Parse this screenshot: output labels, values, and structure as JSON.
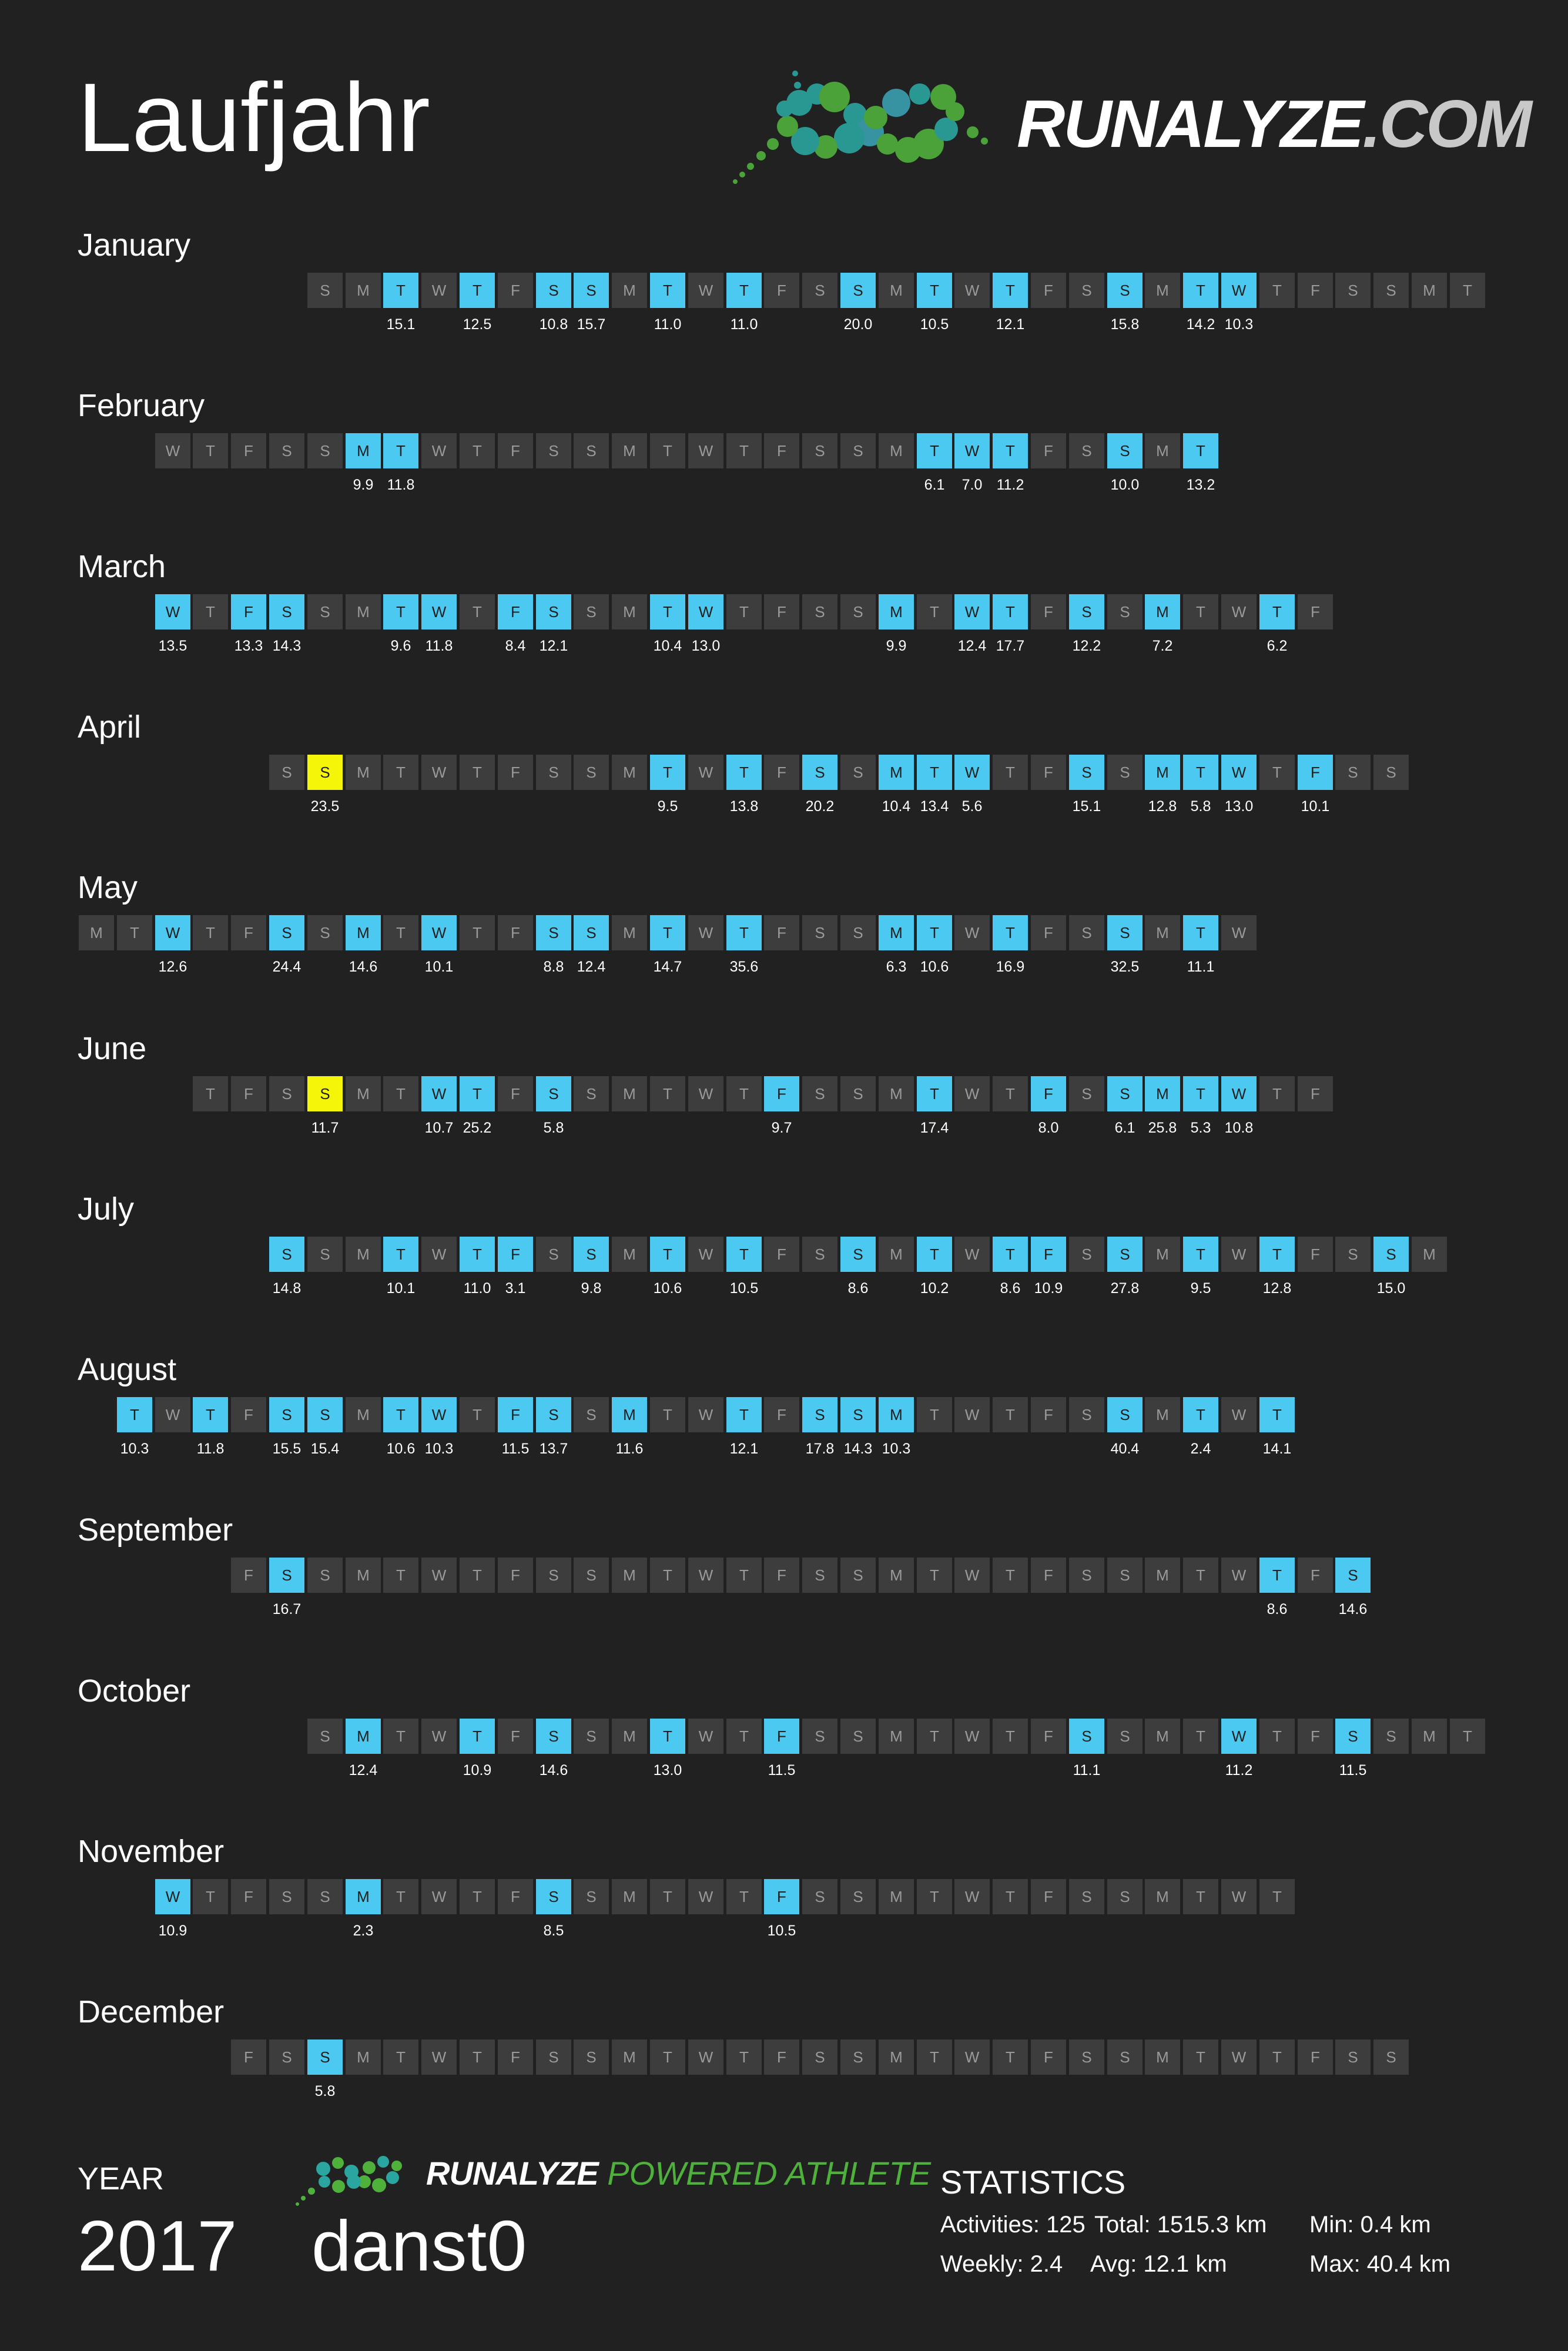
{
  "title": "Laufjahr",
  "logo": {
    "name": "RUNALYZE",
    "suffix": ".COM"
  },
  "months": [
    {
      "name": "January",
      "start": 6,
      "days": "SMTWTFSSMTWTFSSMTWTFSSMTWTFSSMT",
      "runs": {
        "2": "15.1",
        "4": "12.5",
        "6": "10.8",
        "7": "15.7",
        "9": "11.0",
        "11": "11.0",
        "14": "20.0",
        "16": "10.5",
        "18": "12.1",
        "21": "15.8",
        "23": "14.2",
        "24": "10.3"
      }
    },
    {
      "name": "February",
      "start": 2,
      "days": "WTFSSMTWTFSSMTWTFSSMTWTFSSMT",
      "runs": {
        "5": "9.9",
        "6": "11.8",
        "20": "6.1",
        "21": "7.0",
        "22": "11.2",
        "25": "10.0",
        "27": "13.2"
      }
    },
    {
      "name": "March",
      "start": 2,
      "days": "WTFSSMTWTFSSMTWTFSSMTWTFSSMTWTF",
      "runs": {
        "0": "13.5",
        "2": "13.3",
        "3": "14.3",
        "6": "9.6",
        "7": "11.8",
        "9": "8.4",
        "10": "12.1",
        "13": "10.4",
        "14": "13.0",
        "19": "9.9",
        "21": "12.4",
        "22": "17.7",
        "24": "12.2",
        "26": "7.2",
        "29": "6.2"
      }
    },
    {
      "name": "April",
      "start": 5,
      "days": "SSMTWTFSSMTWTFSSMTWTFSSMTWTFSS",
      "runs": {
        "1": "23.5",
        "10": "9.5",
        "12": "13.8",
        "14": "20.2",
        "16": "10.4",
        "17": "13.4",
        "18": "5.6",
        "21": "15.1",
        "23": "12.8",
        "24": "5.8",
        "25": "13.0",
        "27": "10.1"
      },
      "best": [
        "1"
      ]
    },
    {
      "name": "May",
      "start": 0,
      "days": "MTWTFSSMTWTFSSMTWTFSSMTWTFSSMTW",
      "runs": {
        "2": "12.6",
        "5": "24.4",
        "7": "14.6",
        "9": "10.1",
        "12": "8.8",
        "13": "12.4",
        "15": "14.7",
        "17": "35.6",
        "21": "6.3",
        "22": "10.6",
        "24": "16.9",
        "27": "32.5",
        "29": "11.1"
      }
    },
    {
      "name": "June",
      "start": 3,
      "days": "TFSSMTWTFSSMTWTFSSMTWTFSSMTWTF",
      "runs": {
        "3": "11.7",
        "6": "10.7",
        "7": "25.2",
        "9": "5.8",
        "15": "9.7",
        "19": "17.4",
        "22": "8.0",
        "24": "6.1",
        "25": "25.8",
        "26": "5.3",
        "27": "10.8"
      },
      "best": [
        "3"
      ]
    },
    {
      "name": "July",
      "start": 5,
      "days": "SSMTWTFSSMTWTFSSMTWTFSSMTWTFSSM",
      "runs": {
        "0": "14.8",
        "3": "10.1",
        "5": "11.0",
        "6": "3.1",
        "8": "9.8",
        "10": "10.6",
        "12": "10.5",
        "15": "8.6",
        "17": "10.2",
        "19": "8.6",
        "20": "10.9",
        "22": "27.8",
        "24": "9.5",
        "26": "12.8",
        "29": "15.0"
      }
    },
    {
      "name": "August",
      "start": 1,
      "days": "TWTFSSMTWTFSSMTWTFSSMTWTFSSMTWT",
      "runs": {
        "0": "10.3",
        "2": "11.8",
        "4": "15.5",
        "5": "15.4",
        "7": "10.6",
        "8": "10.3",
        "10": "11.5",
        "11": "13.7",
        "13": "11.6",
        "16": "12.1",
        "18": "17.8",
        "19": "14.3",
        "20": "10.3",
        "26": "40.4",
        "28": "2.4",
        "30": "14.1"
      }
    },
    {
      "name": "September",
      "start": 4,
      "days": "FSSMTWTFSSMTWTFSSMTWTFSSMTWTFS",
      "runs": {
        "1": "16.7",
        "27": "8.6",
        "29": "14.6"
      }
    },
    {
      "name": "October",
      "start": 6,
      "days": "SMTWTFSSMTWTFSSMTWTFSSMTWTFSSMT",
      "runs": {
        "1": "12.4",
        "4": "10.9",
        "6": "14.6",
        "9": "13.0",
        "12": "11.5",
        "20": "11.1",
        "24": "11.2",
        "27": "11.5"
      }
    },
    {
      "name": "November",
      "start": 2,
      "days": "WTFSSMTWTFSSMTWTFSSMTWTFSSMTWT",
      "runs": {
        "0": "10.9",
        "5": "2.3",
        "10": "8.5",
        "16": "10.5"
      }
    },
    {
      "name": "December",
      "start": 4,
      "days": "FSSMTWTFSSMTWTFSSMTWTFSSMTWTFSS",
      "runs": {
        "2": "5.8"
      }
    }
  ],
  "footer": {
    "year_label": "YEAR",
    "year": "2017",
    "user": "danst0",
    "powered_brand": "RUNALYZE",
    "powered_sub": "POWERED ATHLETE",
    "stats_title": "STATISTICS",
    "activities": "Activities: 125",
    "total": "Total: 1515.3 km",
    "min": "Min: 0.4 km",
    "weekly": "Weekly: 2.4",
    "avg": "Avg: 12.1 km",
    "max": "Max: 40.4 km"
  },
  "colors": {
    "background": "#212121",
    "day_empty": "#3d3d3d",
    "day_run": "#4cc9f0",
    "day_best": "#f5f50a",
    "logo_green": "#4fb13c",
    "logo_teal": "#2aa5a0"
  }
}
